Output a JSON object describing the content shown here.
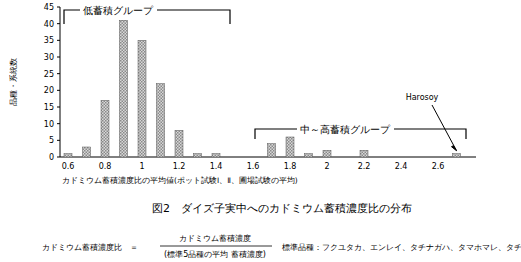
{
  "chart_data": {
    "type": "bar",
    "title": "図2　ダイズ子実中へのカドミウム蓄積濃度比の分布",
    "x_label": "カドミウム蓄積濃度比の平均値(ポット試験Ⅰ、Ⅱ、圃場試験の平均)",
    "y_label": "品種・系統数",
    "categories": [
      "0.6",
      null,
      "0.8",
      null,
      "1",
      null,
      "1.2",
      null,
      "1.4",
      null,
      "1.6",
      null,
      "1.8",
      null,
      "2",
      null,
      "2.2",
      null,
      "2.4",
      null,
      "2.6",
      null
    ],
    "values": [
      1,
      3,
      17,
      41,
      35,
      22,
      8,
      1,
      1,
      0,
      0,
      4,
      6,
      1,
      2,
      0,
      2,
      0,
      0,
      0,
      0,
      1
    ],
    "color": "#8a8a8a",
    "ylim": [
      0,
      45
    ],
    "yticks": [
      0,
      5,
      10,
      15,
      20,
      25,
      30,
      35,
      40,
      45
    ],
    "grid": false,
    "annotations": [
      "低蓄積グループ",
      "中～高蓄積グループ",
      "Harosoy"
    ],
    "footnote": {
      "label": "カドミウム蓄積濃度比　＝",
      "numerator": "カドミウム蓄積濃度",
      "denominator": "(標準5品種の平均 蓄積濃度)",
      "standards": "標準品種：フクユタカ、エンレイ、タチナガハ、タマホマレ、タチユタカ"
    }
  }
}
